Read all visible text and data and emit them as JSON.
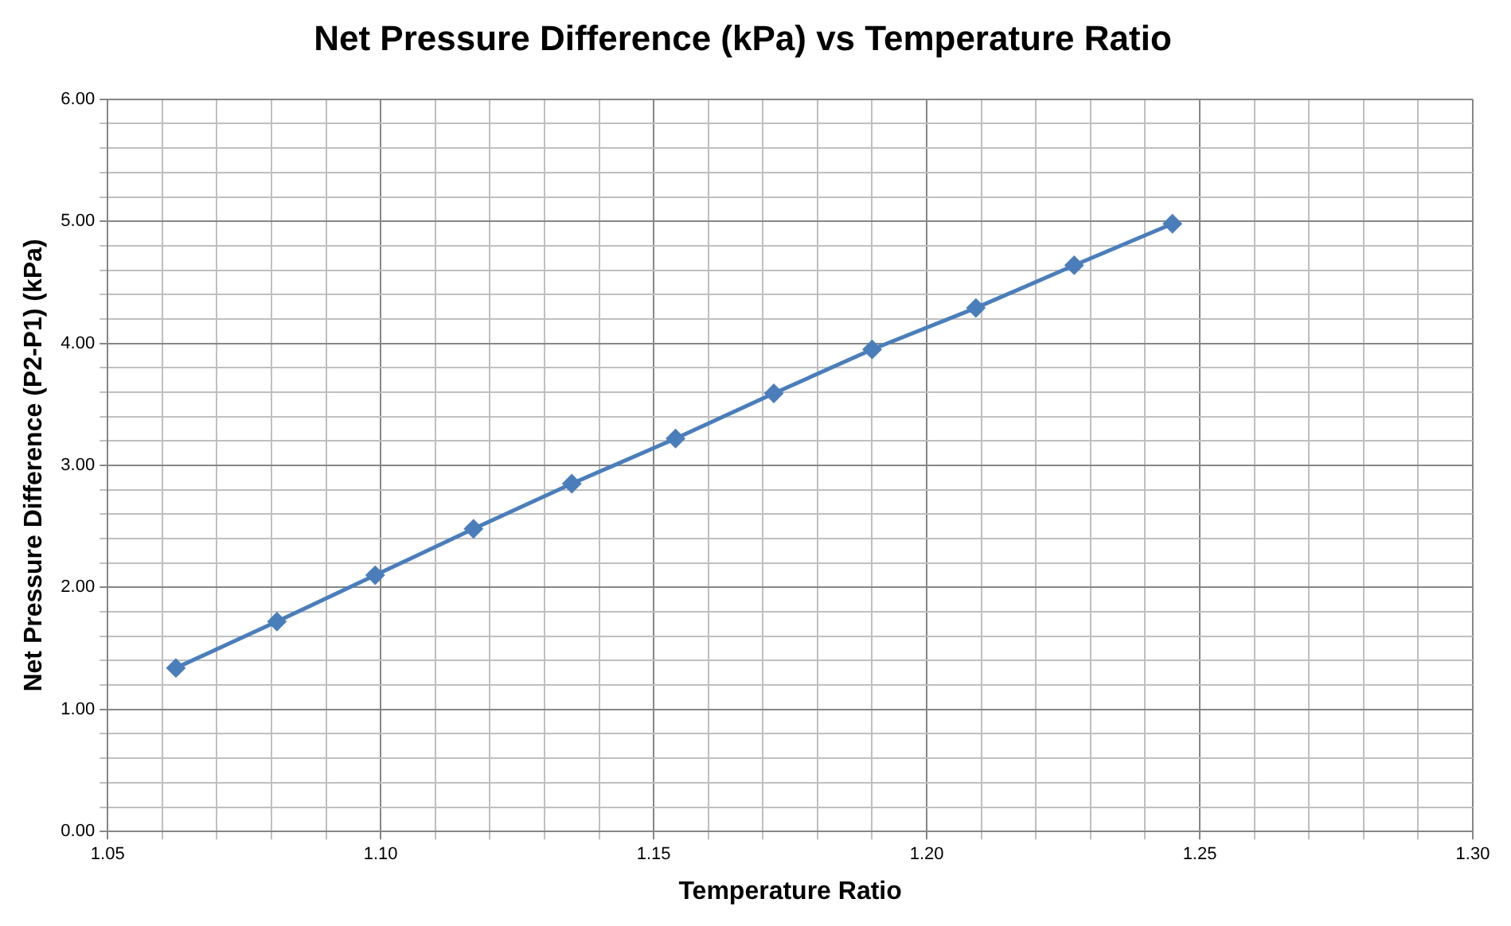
{
  "chart_data": {
    "type": "line",
    "title": "Net Pressure Difference (kPa) vs Temperature Ratio",
    "xlabel": "Temperature Ratio",
    "ylabel": "Net Pressure Difference (P2-P1) (kPa)",
    "x": [
      1.0625,
      1.081,
      1.099,
      1.117,
      1.135,
      1.154,
      1.172,
      1.19,
      1.209,
      1.227,
      1.245
    ],
    "series": [
      {
        "color": "#4a7ebb",
        "values": [
          1.34,
          1.72,
          2.1,
          2.48,
          2.85,
          3.22,
          3.59,
          3.95,
          4.29,
          4.64,
          4.98
        ]
      }
    ],
    "xlim": [
      1.05,
      1.3
    ],
    "xticks": [
      {
        "value": 1.05,
        "label": "1.05"
      },
      {
        "value": 1.06,
        "label": null
      },
      {
        "value": 1.07,
        "label": null
      },
      {
        "value": 1.08,
        "label": null
      },
      {
        "value": 1.09,
        "label": null
      },
      {
        "value": 1.1,
        "label": "1.10"
      },
      {
        "value": 1.11,
        "label": null
      },
      {
        "value": 1.12,
        "label": null
      },
      {
        "value": 1.13,
        "label": null
      },
      {
        "value": 1.14,
        "label": null
      },
      {
        "value": 1.15,
        "label": "1.15"
      },
      {
        "value": 1.16,
        "label": null
      },
      {
        "value": 1.17,
        "label": null
      },
      {
        "value": 1.18,
        "label": null
      },
      {
        "value": 1.19,
        "label": null
      },
      {
        "value": 1.2,
        "label": "1.20"
      },
      {
        "value": 1.21,
        "label": null
      },
      {
        "value": 1.22,
        "label": null
      },
      {
        "value": 1.23,
        "label": null
      },
      {
        "value": 1.24,
        "label": null
      },
      {
        "value": 1.25,
        "label": "1.25"
      },
      {
        "value": 1.26,
        "label": null
      },
      {
        "value": 1.27,
        "label": null
      },
      {
        "value": 1.28,
        "label": null
      },
      {
        "value": 1.29,
        "label": null
      },
      {
        "value": 1.3,
        "label": "1.30"
      }
    ],
    "ylim": [
      0,
      6
    ],
    "yticks": [
      {
        "value": 0,
        "label": "0.00"
      },
      {
        "value": 0.2,
        "label": null
      },
      {
        "value": 0.4,
        "label": null
      },
      {
        "value": 0.6,
        "label": null
      },
      {
        "value": 0.8,
        "label": null
      },
      {
        "value": 1,
        "label": "1.00"
      },
      {
        "value": 1.2,
        "label": null
      },
      {
        "value": 1.4,
        "label": null
      },
      {
        "value": 1.6,
        "label": null
      },
      {
        "value": 1.8,
        "label": null
      },
      {
        "value": 2,
        "label": "2.00"
      },
      {
        "value": 2.2,
        "label": null
      },
      {
        "value": 2.4,
        "label": null
      },
      {
        "value": 2.6,
        "label": null
      },
      {
        "value": 2.8,
        "label": null
      },
      {
        "value": 3,
        "label": "3.00"
      },
      {
        "value": 3.2,
        "label": null
      },
      {
        "value": 3.4,
        "label": null
      },
      {
        "value": 3.6,
        "label": null
      },
      {
        "value": 3.8,
        "label": null
      },
      {
        "value": 4,
        "label": "4.00"
      },
      {
        "value": 4.2,
        "label": null
      },
      {
        "value": 4.4,
        "label": null
      },
      {
        "value": 4.6,
        "label": null
      },
      {
        "value": 4.8,
        "label": null
      },
      {
        "value": 5,
        "label": "5.00"
      },
      {
        "value": 5.2,
        "label": null
      },
      {
        "value": 5.4,
        "label": null
      },
      {
        "value": 5.6,
        "label": null
      },
      {
        "value": 5.8,
        "label": null
      },
      {
        "value": 6,
        "label": "6.00"
      }
    ],
    "grid": true,
    "marker": "diamond",
    "line_style": "solid",
    "legend": false
  }
}
